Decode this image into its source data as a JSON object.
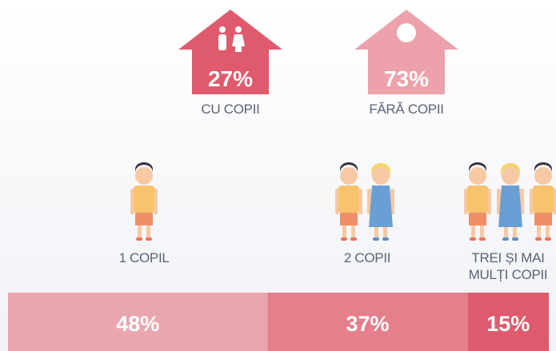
{
  "households": [
    {
      "value": 27,
      "value_label": "27%",
      "label": "CU COPII",
      "color": "#e05a6d"
    },
    {
      "value": 73,
      "value_label": "73%",
      "label": "FĂRĂ COPII",
      "color": "#eda1ab"
    }
  ],
  "children": [
    {
      "label": "1 COPIL",
      "value": 48,
      "value_label": "48%",
      "color": "#eaa6af"
    },
    {
      "label": "2 COPII",
      "value": 37,
      "value_label": "37%",
      "color": "#e47f8b"
    },
    {
      "label": "TREI ȘI MAI MULȚI COPII",
      "value": 15,
      "value_label": "15%",
      "color": "#de5b6e"
    }
  ]
}
